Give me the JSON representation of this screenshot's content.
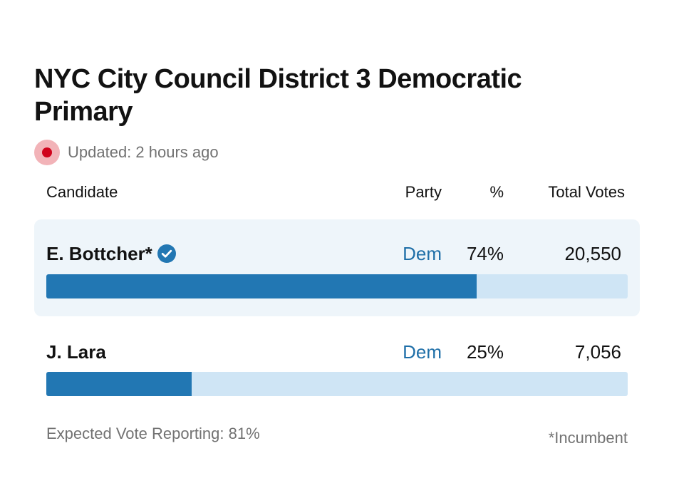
{
  "header": {
    "title": "NYC City Council District 3 Democratic Primary",
    "updated": "Updated: 2 hours ago"
  },
  "table": {
    "columns": {
      "candidate": "Candidate",
      "party": "Party",
      "percent": "%",
      "votes": "Total Votes"
    },
    "rows": [
      {
        "name": "E. Bottcher*",
        "party": "Dem",
        "percent": "74%",
        "votes": "20,550",
        "share": 74,
        "winner": true
      },
      {
        "name": "J. Lara",
        "party": "Dem",
        "percent": "25%",
        "votes": "7,056",
        "share": 25,
        "winner": false
      }
    ]
  },
  "footer": {
    "reporting": "Expected Vote Reporting: 81%",
    "note": "*Incumbent"
  },
  "colors": {
    "party_dem": "#1f6fa8",
    "bar_fill": "#2277b3",
    "bar_track": "#cfe5f5",
    "live": "#d0021b",
    "highlight_row": "#eef5fa"
  },
  "icons": {
    "live": "live-dot-icon",
    "winner": "check-badge-icon"
  }
}
